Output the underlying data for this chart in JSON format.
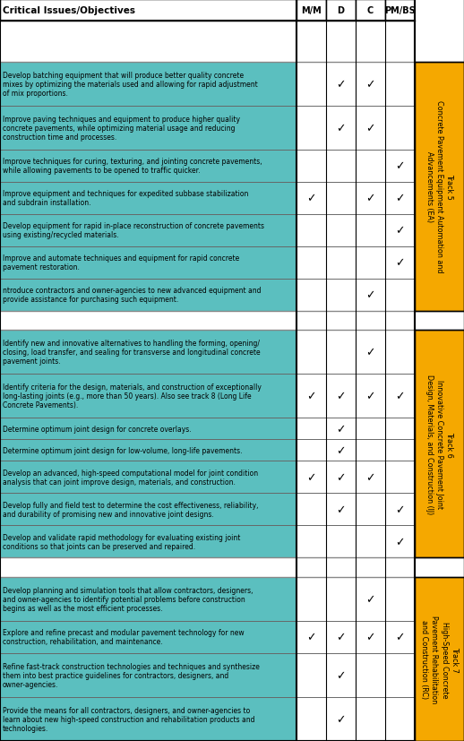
{
  "header": [
    "Critical Issues/Objectives",
    "M/M",
    "D",
    "C",
    "PM/BS"
  ],
  "track5_label_bold": "Track 5",
  "track5_label_normal": "Concrete Pavement Equipment Automation and\nAdvancements (EA)",
  "track6_label_bold": "Track 6",
  "track6_label_normal": "Innovative Concrete Pavement Joint\nDesign, Materials, and Construction (IJ)",
  "track7_label_bold": "Track 7",
  "track7_label_normal": "High-Speed Concrete\nPavement Rehabilitation\nand Construction (RC)",
  "rows": [
    {
      "text": "",
      "checks": [
        0,
        0,
        0,
        0
      ],
      "bg": "#ffffff",
      "track": null,
      "lines": 3
    },
    {
      "text": "Develop batching equipment that will produce better quality concrete\nmixes by optimizing the materials used and allowing for rapid adjustment\nof mix proportions.",
      "checks": [
        0,
        1,
        1,
        0
      ],
      "bg": "#5bbfbf",
      "track": 5,
      "lines": 3
    },
    {
      "text": "Improve paving techniques and equipment to produce higher quality\nconcrete pavements, while optimizing material usage and reducing\nconstruction time and processes.",
      "checks": [
        0,
        1,
        1,
        0
      ],
      "bg": "#5bbfbf",
      "track": 5,
      "lines": 3
    },
    {
      "text": "Improve techniques for curing, texturing, and jointing concrete pavements,\nwhile allowing pavements to be opened to traffic quicker.",
      "checks": [
        0,
        0,
        0,
        1
      ],
      "bg": "#5bbfbf",
      "track": 5,
      "lines": 2
    },
    {
      "text": "Improve equipment and techniques for expedited subbase stabilization\nand subdrain installation.",
      "checks": [
        1,
        0,
        1,
        1
      ],
      "bg": "#5bbfbf",
      "track": 5,
      "lines": 2
    },
    {
      "text": "Develop equipment for rapid in-place reconstruction of concrete pavements\nusing existing/recycled materials.",
      "checks": [
        0,
        0,
        0,
        1
      ],
      "bg": "#5bbfbf",
      "track": 5,
      "lines": 2
    },
    {
      "text": "Improve and automate techniques and equipment for rapid concrete\npavement restoration.",
      "checks": [
        0,
        0,
        0,
        1
      ],
      "bg": "#5bbfbf",
      "track": 5,
      "lines": 2
    },
    {
      "text": "ntroduce contractors and owner-agencies to new advanced equipment and\nprovide assistance for purchasing such equipment.",
      "checks": [
        0,
        0,
        1,
        0
      ],
      "bg": "#5bbfbf",
      "track": 5,
      "lines": 2
    },
    {
      "text": "",
      "checks": [
        0,
        0,
        0,
        0
      ],
      "bg": "#ffffff",
      "track": null,
      "lines": 2
    },
    {
      "text": "Identify new and innovative alternatives to handling the forming, opening/\nclosing, load transfer, and sealing for transverse and longitudinal concrete\npavement joints.",
      "checks": [
        0,
        0,
        1,
        0
      ],
      "bg": "#5bbfbf",
      "track": 6,
      "lines": 3
    },
    {
      "text": "Identify criteria for the design, materials, and construction of exceptionally\nlong-lasting joints (e.g., more than 50 years). Also see track 8 (Long Life\nConcrete Pavements).",
      "checks": [
        1,
        1,
        1,
        1
      ],
      "bg": "#5bbfbf",
      "track": 6,
      "lines": 3
    },
    {
      "text": "Determine optimum joint design for concrete overlays.",
      "checks": [
        0,
        1,
        0,
        0
      ],
      "bg": "#5bbfbf",
      "track": 6,
      "lines": 1
    },
    {
      "text": "Determine optimum joint design for low-volume, long-life pavements.",
      "checks": [
        0,
        1,
        0,
        0
      ],
      "bg": "#5bbfbf",
      "track": 6,
      "lines": 1
    },
    {
      "text": "Develop an advanced, high-speed computational model for joint condition\nanalysis that can joint improve design, materials, and construction.",
      "checks": [
        1,
        1,
        1,
        0
      ],
      "bg": "#5bbfbf",
      "track": 6,
      "lines": 2
    },
    {
      "text": "Develop fully and field test to determine the cost effectiveness, reliability,\nand durability of promising new and innovative joint designs.",
      "checks": [
        0,
        1,
        0,
        1
      ],
      "bg": "#5bbfbf",
      "track": 6,
      "lines": 2
    },
    {
      "text": "Develop and validate rapid methodology for evaluating existing joint\nconditions so that joints can be preserved and repaired.",
      "checks": [
        0,
        0,
        0,
        1
      ],
      "bg": "#5bbfbf",
      "track": 6,
      "lines": 2
    },
    {
      "text": "",
      "checks": [
        0,
        0,
        0,
        0
      ],
      "bg": "#ffffff",
      "track": null,
      "lines": 2
    },
    {
      "text": "Develop planning and simulation tools that allow contractors, designers,\nand owner-agencies to identify potential problems before construction\nbegins as well as the most efficient processes.",
      "checks": [
        0,
        0,
        1,
        0
      ],
      "bg": "#5bbfbf",
      "track": 7,
      "lines": 3
    },
    {
      "text": "Explore and refine precast and modular pavement technology for new\nconstruction, rehabilitation, and maintenance.",
      "checks": [
        1,
        1,
        1,
        1
      ],
      "bg": "#5bbfbf",
      "track": 7,
      "lines": 2
    },
    {
      "text": "Refine fast-track construction technologies and techniques and synthesize\nthem into best practice guidelines for contractors, designers, and\nowner-agencies.",
      "checks": [
        0,
        1,
        0,
        0
      ],
      "bg": "#5bbfbf",
      "track": 7,
      "lines": 3
    },
    {
      "text": "Provide the means for all contractors, designers, and owner-agencies to\nlearn about new high-speed construction and rehabilitation products and\ntechnologies.",
      "checks": [
        0,
        1,
        0,
        0
      ],
      "bg": "#5bbfbf",
      "track": 7,
      "lines": 3
    }
  ],
  "header_bg": "#ffffff",
  "track_bg": "#f5a800",
  "border_color": "#000000",
  "check_symbol": "✓",
  "fig_width": 5.18,
  "fig_height": 8.28,
  "dpi": 100
}
